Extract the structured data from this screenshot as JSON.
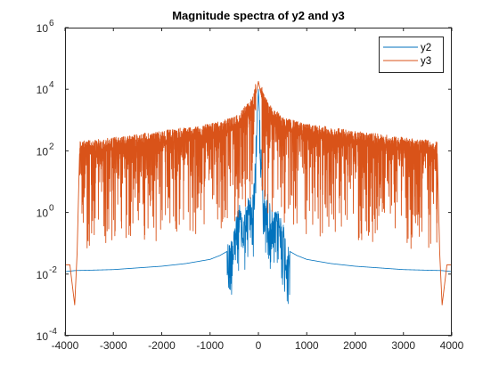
{
  "chart_data": {
    "type": "line",
    "title": "Magnitude spectra of y2 and y3",
    "xlabel": "",
    "ylabel": "",
    "xlim": [
      -4000,
      4000
    ],
    "ylim": [
      0.0001,
      1000000
    ],
    "yscale": "log",
    "grid": false,
    "legend_position": "top-right",
    "x_ticks": [
      -4000,
      -3000,
      -2000,
      -1000,
      0,
      1000,
      2000,
      3000,
      4000
    ],
    "x_tick_labels": [
      "-4000",
      "-3000",
      "-2000",
      "-1000",
      "0",
      "1000",
      "2000",
      "3000",
      "4000"
    ],
    "y_ticks": [
      0.0001,
      0.01,
      1,
      100,
      10000,
      1000000
    ],
    "y_tick_labels": [
      {
        "base": "10",
        "exp": "-4"
      },
      {
        "base": "10",
        "exp": "-2"
      },
      {
        "base": "10",
        "exp": "0"
      },
      {
        "base": "10",
        "exp": "2"
      },
      {
        "base": "10",
        "exp": "4"
      },
      {
        "base": "10",
        "exp": "6"
      }
    ],
    "series": [
      {
        "name": "y2",
        "color": "#0072BD",
        "x": [
          -4000,
          -3800,
          -3000,
          -2000,
          -1500,
          -1000,
          -800,
          -600,
          -500,
          -400,
          -300,
          -200,
          -100,
          0,
          100,
          200,
          300,
          400,
          500,
          600,
          800,
          1000,
          1500,
          2000,
          3000,
          3800,
          4000
        ],
        "y": [
          0.012,
          0.013,
          0.014,
          0.018,
          0.022,
          0.03,
          0.04,
          0.06,
          0.3,
          1.0,
          0.5,
          2.0,
          3.0,
          10000,
          3.0,
          2.0,
          0.5,
          1.0,
          0.3,
          0.06,
          0.04,
          0.03,
          0.022,
          0.018,
          0.014,
          0.013,
          0.012
        ]
      },
      {
        "name": "y3",
        "color": "#D95319",
        "x": [
          -4000,
          -3900,
          -3800,
          -3750,
          -3700,
          -3500,
          -3000,
          -2000,
          -1000,
          -500,
          -200,
          -100,
          0,
          100,
          200,
          500,
          1000,
          2000,
          3000,
          3500,
          3700,
          3750,
          3800,
          3900,
          4000
        ],
        "y": [
          0.02,
          0.02,
          0.001,
          0.05,
          80,
          90,
          110,
          180,
          300,
          500,
          1500,
          3000,
          18000,
          3000,
          1500,
          500,
          300,
          180,
          110,
          90,
          80,
          0.05,
          0.001,
          0.02,
          0.02
        ]
      }
    ]
  }
}
